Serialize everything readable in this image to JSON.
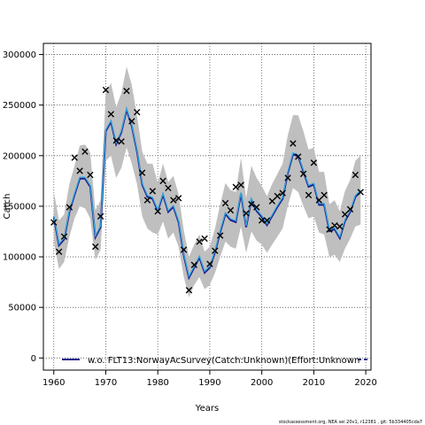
{
  "chart_data": {
    "type": "line",
    "xlabel": "Years",
    "ylabel": "Catch",
    "xlim": [
      1958,
      2021
    ],
    "ylim": [
      -12000,
      311000
    ],
    "x_ticks": [
      1960,
      1970,
      1980,
      1990,
      2000,
      2010,
      2020
    ],
    "y_ticks": [
      0,
      50000,
      100000,
      150000,
      200000,
      250000,
      300000
    ],
    "x_tick_labels": [
      "1960",
      "1970",
      "1980",
      "1990",
      "2000",
      "2010",
      "2020"
    ],
    "y_tick_labels": [
      "0",
      "50000",
      "100000",
      "150000",
      "200000",
      "250000",
      "300000"
    ],
    "grid": true,
    "legend": {
      "position": "bottom",
      "label": "w.o. FLT13:NorwayAcSurvey(Catch:Unknown)(Effort:Unknown"
    },
    "colors": {
      "band": "#bfbfbf",
      "dark_line": "#1e1e8c",
      "light_line": "#2fa8e0",
      "points": "#000000",
      "grid": "#555555"
    },
    "series": [
      {
        "kind": "observed",
        "marker": "x",
        "points": [
          [
            1960,
            134000
          ],
          [
            1961,
            105000
          ],
          [
            1962,
            120000
          ],
          [
            1963,
            149000
          ],
          [
            1964,
            198000
          ],
          [
            1965,
            185000
          ],
          [
            1966,
            204000
          ],
          [
            1967,
            181000
          ],
          [
            1968,
            110000
          ],
          [
            1969,
            140000
          ],
          [
            1970,
            265000
          ],
          [
            1971,
            241000
          ],
          [
            1972,
            215000
          ],
          [
            1973,
            214000
          ],
          [
            1974,
            264000
          ],
          [
            1975,
            234000
          ],
          [
            1976,
            243000
          ],
          [
            1977,
            183000
          ],
          [
            1978,
            156000
          ],
          [
            1979,
            165000
          ],
          [
            1980,
            145000
          ],
          [
            1981,
            175000
          ],
          [
            1982,
            168000
          ],
          [
            1983,
            156000
          ],
          [
            1984,
            158000
          ],
          [
            1985,
            107000
          ],
          [
            1986,
            67000
          ],
          [
            1987,
            92000
          ],
          [
            1988,
            115000
          ],
          [
            1989,
            118000
          ],
          [
            1990,
            93000
          ],
          [
            1991,
            106000
          ],
          [
            1992,
            121000
          ],
          [
            1993,
            153000
          ],
          [
            1994,
            146000
          ],
          [
            1995,
            169000
          ],
          [
            1996,
            171000
          ],
          [
            1997,
            143000
          ],
          [
            1998,
            152000
          ],
          [
            1999,
            149000
          ],
          [
            2000,
            136000
          ],
          [
            2001,
            136000
          ],
          [
            2002,
            155000
          ],
          [
            2003,
            160000
          ],
          [
            2004,
            163000
          ],
          [
            2005,
            178000
          ],
          [
            2006,
            212000
          ],
          [
            2007,
            199000
          ],
          [
            2008,
            182000
          ],
          [
            2009,
            161000
          ],
          [
            2010,
            193000
          ],
          [
            2011,
            156000
          ],
          [
            2012,
            161000
          ],
          [
            2013,
            127000
          ],
          [
            2014,
            131000
          ],
          [
            2015,
            130000
          ],
          [
            2016,
            142000
          ],
          [
            2017,
            147000
          ],
          [
            2018,
            181000
          ],
          [
            2019,
            164000
          ]
        ]
      },
      {
        "kind": "fit",
        "x": [
          1960,
          1961,
          1962,
          1963,
          1964,
          1965,
          1966,
          1967,
          1968,
          1969,
          1970,
          1971,
          1972,
          1973,
          1974,
          1975,
          1976,
          1977,
          1978,
          1979,
          1980,
          1981,
          1982,
          1983,
          1984,
          1985,
          1986,
          1987,
          1988,
          1989,
          1990,
          1991,
          1992,
          1993,
          1994,
          1995,
          1996,
          1997,
          1998,
          1999,
          2000,
          2001,
          2002,
          2003,
          2004,
          2005,
          2006,
          2007,
          2008,
          2009,
          2010,
          2011,
          2012,
          2013,
          2014,
          2015,
          2016,
          2017,
          2018,
          2019
        ],
        "mid": [
          140000,
          112000,
          118000,
          145000,
          162000,
          178000,
          178000,
          170000,
          120000,
          130000,
          225000,
          234000,
          212000,
          224000,
          246000,
          230000,
          205000,
          172000,
          160000,
          158000,
          146000,
          162000,
          145000,
          150000,
          135000,
          102000,
          80000,
          90000,
          100000,
          85000,
          90000,
          105000,
          125000,
          143000,
          137000,
          135000,
          163000,
          130000,
          157000,
          146000,
          140000,
          132000,
          141000,
          150000,
          158000,
          183000,
          202000,
          200000,
          185000,
          170000,
          172000,
          152000,
          152000,
          126000,
          128000,
          119000,
          136000,
          145000,
          160000,
          165000
        ],
        "lower": [
          115000,
          88000,
          95000,
          120000,
          138000,
          150000,
          148000,
          138000,
          97000,
          107000,
          195000,
          200000,
          178000,
          188000,
          208000,
          192000,
          172000,
          140000,
          128000,
          124000,
          122000,
          135000,
          118000,
          124000,
          110000,
          80000,
          60000,
          72000,
          80000,
          68000,
          72000,
          84000,
          100000,
          115000,
          110000,
          108000,
          130000,
          104000,
          125000,
          116000,
          112000,
          104000,
          112000,
          120000,
          128000,
          150000,
          168000,
          164000,
          150000,
          138000,
          140000,
          124000,
          122000,
          100000,
          102000,
          95000,
          108000,
          118000,
          130000,
          132000
        ],
        "upper": [
          165000,
          136000,
          142000,
          172000,
          190000,
          210000,
          211000,
          203000,
          146000,
          156000,
          262000,
          272000,
          248000,
          262000,
          288000,
          270000,
          240000,
          204000,
          192000,
          192000,
          173000,
          192000,
          174000,
          180000,
          162000,
          126000,
          100000,
          112000,
          122000,
          105000,
          110000,
          128000,
          152000,
          173000,
          166000,
          164000,
          198000,
          158000,
          190000,
          178000,
          170000,
          160000,
          172000,
          182000,
          192000,
          220000,
          240000,
          240000,
          224000,
          206000,
          208000,
          184000,
          184000,
          152000,
          156000,
          145000,
          165000,
          176000,
          195000,
          200000
        ]
      }
    ]
  },
  "footer": "stockassessment.org, NEA sei 20v1, r12381 , git: 5b334405cda7"
}
